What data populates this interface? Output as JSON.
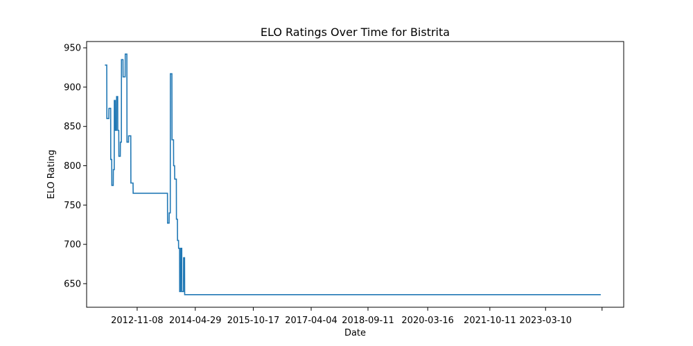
{
  "chart_data": {
    "type": "line",
    "title": "ELO Ratings Over Time for Bistrita",
    "xlabel": "Date",
    "ylabel": "ELO Rating",
    "x_ticks": [
      "2012-11-08",
      "2014-04-29",
      "2015-10-17",
      "2017-04-04",
      "2018-09-11",
      "2020-03-16",
      "2021-10-11",
      "2023-03-10",
      ""
    ],
    "y_ticks": [
      650,
      700,
      750,
      800,
      850,
      900,
      950
    ],
    "ylim": [
      620,
      958
    ],
    "xlim": [
      "2011-07-30",
      "2025-03-01"
    ],
    "grid": false,
    "series_color": "#1f77b4",
    "series": [
      {
        "x": [
          "2012-01-15",
          "2012-02-01",
          "2012-02-02",
          "2012-02-20",
          "2012-02-21",
          "2012-03-08",
          "2012-03-09",
          "2012-03-18",
          "2012-03-19",
          "2012-04-01",
          "2012-04-02",
          "2012-04-10",
          "2012-04-11",
          "2012-04-20",
          "2012-04-21",
          "2012-05-01",
          "2012-05-02",
          "2012-05-12",
          "2012-05-13",
          "2012-05-22",
          "2012-05-23",
          "2012-06-05",
          "2012-06-06",
          "2012-06-15",
          "2012-06-16",
          "2012-06-30",
          "2012-07-01",
          "2012-07-20",
          "2012-07-21",
          "2012-08-05",
          "2012-08-06",
          "2012-08-20",
          "2012-08-21",
          "2012-09-10",
          "2012-09-11",
          "2012-10-01",
          "2012-10-02",
          "2012-10-20",
          "2012-10-21",
          "2012-11-05",
          "2012-11-06",
          "2012-11-20",
          "2012-11-21",
          "2012-12-05",
          "2012-12-06",
          "2013-01-20",
          "2013-08-15",
          "2013-08-16",
          "2013-08-30",
          "2013-08-31",
          "2013-09-10",
          "2013-09-11",
          "2013-09-25",
          "2013-09-26",
          "2013-10-10",
          "2013-10-11",
          "2013-10-20",
          "2013-10-21",
          "2013-11-05",
          "2013-11-06",
          "2013-11-15",
          "2013-11-16",
          "2013-11-25",
          "2013-11-26",
          "2013-12-05",
          "2013-12-06",
          "2013-12-15",
          "2013-12-16",
          "2013-12-25",
          "2013-12-26",
          "2014-01-10",
          "2014-01-11",
          "2014-01-20",
          "2014-01-21",
          "2014-02-01",
          "2014-02-02",
          "2014-02-20",
          "2024-08-01"
        ],
        "y": [
          928,
          928,
          860,
          860,
          873,
          873,
          808,
          808,
          775,
          775,
          795,
          795,
          883,
          883,
          845,
          845,
          888,
          888,
          845,
          845,
          812,
          812,
          830,
          830,
          935,
          935,
          913,
          913,
          942,
          942,
          830,
          830,
          838,
          838,
          778,
          778,
          765,
          765,
          765,
          765,
          765,
          765,
          765,
          765,
          765,
          765,
          765,
          727,
          727,
          740,
          740,
          917,
          917,
          833,
          833,
          800,
          800,
          783,
          783,
          732,
          732,
          705,
          705,
          695,
          695,
          640,
          640,
          695,
          695,
          640,
          640,
          683,
          683,
          636,
          636,
          636,
          636,
          636
        ]
      }
    ]
  }
}
